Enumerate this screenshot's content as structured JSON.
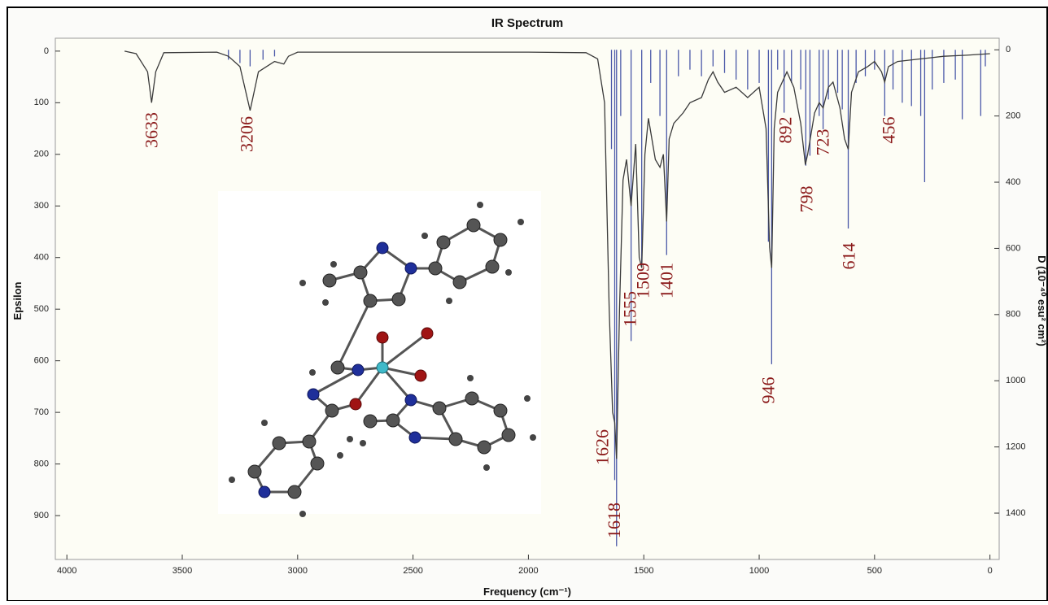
{
  "chart_data": {
    "type": "spectrum",
    "title": "IR Spectrum",
    "x_label": "Frequency (cm⁻¹)",
    "y_label": "Epsilon",
    "y2_label": "D (10⁻⁴⁰ esu² cm²)",
    "xlim": [
      4050,
      -40
    ],
    "xticks": [
      4000,
      3500,
      3000,
      2500,
      2000,
      1500,
      1000,
      500,
      0
    ],
    "ylim": [
      -25,
      985
    ],
    "yticks": [
      0,
      100,
      200,
      300,
      400,
      500,
      600,
      700,
      800,
      900
    ],
    "y2lim": [
      -35,
      1540
    ],
    "y2ticks": [
      0,
      200,
      400,
      600,
      800,
      1000,
      1200,
      1400
    ],
    "line": {
      "color": "#3a3a3a",
      "x": [
        3750,
        3700,
        3650,
        3633,
        3615,
        3580,
        3350,
        3300,
        3250,
        3206,
        3170,
        3100,
        3060,
        3040,
        3000,
        2000,
        1750,
        1700,
        1670,
        1650,
        1635,
        1626,
        1618,
        1605,
        1590,
        1575,
        1555,
        1535,
        1520,
        1509,
        1495,
        1480,
        1450,
        1430,
        1415,
        1401,
        1390,
        1370,
        1330,
        1300,
        1250,
        1220,
        1200,
        1180,
        1150,
        1100,
        1050,
        1000,
        970,
        955,
        946,
        935,
        920,
        900,
        880,
        850,
        820,
        800,
        790,
        760,
        740,
        723,
        700,
        680,
        650,
        630,
        614,
        600,
        570,
        530,
        500,
        470,
        456,
        440,
        400,
        300,
        200,
        100,
        0
      ],
      "values": [
        0,
        5,
        40,
        100,
        40,
        3,
        2,
        10,
        30,
        115,
        40,
        20,
        25,
        10,
        2,
        2,
        3,
        15,
        100,
        500,
        700,
        720,
        790,
        500,
        250,
        210,
        300,
        180,
        400,
        420,
        200,
        130,
        210,
        225,
        200,
        330,
        170,
        140,
        120,
        100,
        90,
        55,
        40,
        60,
        80,
        70,
        90,
        70,
        150,
        380,
        420,
        150,
        80,
        60,
        40,
        70,
        140,
        220,
        200,
        120,
        100,
        110,
        70,
        60,
        110,
        170,
        190,
        80,
        40,
        30,
        20,
        40,
        60,
        30,
        20,
        15,
        10,
        8,
        5
      ]
    },
    "sticks": {
      "color": "#4a58a8",
      "axis": "y2",
      "x": [
        3300,
        3250,
        3206,
        3150,
        3100,
        1640,
        1626,
        1618,
        1600,
        1555,
        1509,
        1470,
        1430,
        1401,
        1350,
        1300,
        1250,
        1200,
        1150,
        1100,
        1050,
        1000,
        960,
        946,
        920,
        892,
        860,
        820,
        798,
        780,
        740,
        723,
        700,
        660,
        640,
        614,
        580,
        540,
        500,
        456,
        420,
        380,
        340,
        300,
        283,
        250,
        200,
        150,
        120,
        40,
        20
      ],
      "values": [
        30,
        40,
        50,
        30,
        20,
        300,
        1300,
        1500,
        200,
        880,
        650,
        100,
        200,
        620,
        80,
        60,
        80,
        50,
        70,
        90,
        120,
        100,
        580,
        950,
        60,
        190,
        100,
        120,
        350,
        320,
        200,
        240,
        150,
        130,
        180,
        540,
        100,
        80,
        60,
        200,
        120,
        160,
        170,
        200,
        400,
        120,
        100,
        90,
        210,
        200,
        50
      ]
    },
    "peak_labels": [
      3633,
      3206,
      1626,
      1618,
      1555,
      1509,
      1401,
      946,
      892,
      798,
      723,
      614,
      456
    ]
  }
}
